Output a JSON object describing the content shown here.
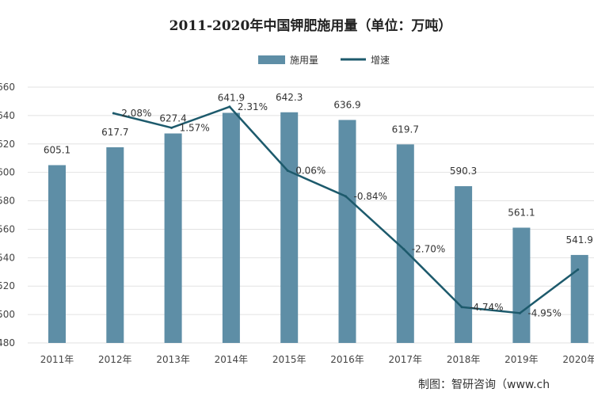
{
  "chart_data": {
    "type": "bar+line",
    "title": "2011-2020年中国钾肥施用量（单位：万吨）",
    "categories": [
      "2011年",
      "2012年",
      "2013年",
      "2014年",
      "2015年",
      "2016年",
      "2017年",
      "2018年",
      "2019年",
      "2020年"
    ],
    "series": [
      {
        "name": "施用量",
        "type": "bar",
        "axis": "left",
        "color": "#5e8ea6",
        "values": [
          605.1,
          617.7,
          627.4,
          641.9,
          642.3,
          636.9,
          619.7,
          590.3,
          561.1,
          541.9
        ],
        "labels": [
          "605.1",
          "617.7",
          "627.4",
          "641.9",
          "642.3",
          "636.9",
          "619.7",
          "590.3",
          "561.1",
          "541.9"
        ]
      },
      {
        "name": "增速",
        "type": "line",
        "axis": "right",
        "color": "#1d5a6c",
        "values": [
          null,
          2.08,
          1.57,
          2.31,
          0.06,
          -0.84,
          -2.7,
          -4.74,
          -4.95,
          -3.42
        ],
        "labels": [
          null,
          "2.08%",
          "1.57%",
          "2.31%",
          "0.06%",
          "-0.84%",
          "-2.70%",
          "-4.74%",
          "-4.95%",
          null
        ]
      }
    ],
    "yticks": [
      "660",
      "640",
      "620",
      "600",
      "580",
      "560",
      "540",
      "520",
      "500",
      "480"
    ],
    "ylim": [
      480,
      660
    ],
    "y2lim": [
      -6,
      3
    ],
    "y2_visible": false,
    "grid": true,
    "legend": "top-center",
    "source": "制图：智研咨询（www.ch"
  }
}
